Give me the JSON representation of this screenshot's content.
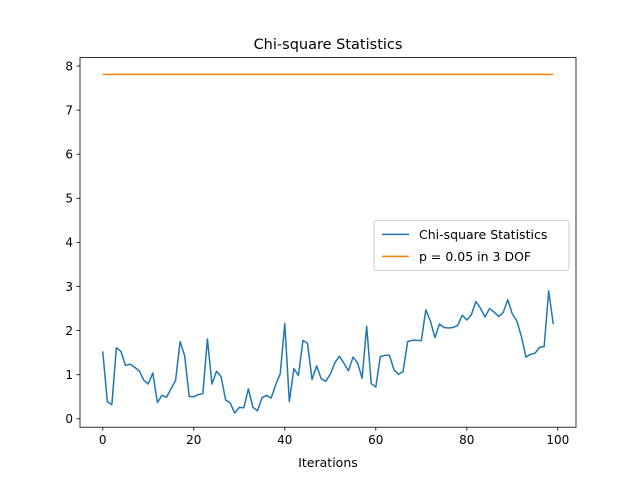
{
  "chart_data": {
    "type": "line",
    "title": "Chi-square Statistics",
    "xlabel": "Iterations",
    "ylabel": "",
    "xlim": [
      -5,
      104
    ],
    "ylim": [
      -0.19,
      8.19
    ],
    "x_ticks": [
      0,
      20,
      40,
      60,
      80,
      100
    ],
    "y_ticks": [
      0,
      1,
      2,
      3,
      4,
      5,
      6,
      7,
      8
    ],
    "grid": false,
    "legend_position": "center-right",
    "series": [
      {
        "name": "Chi-square Statistics",
        "color": "#1f77b4",
        "x": [
          0,
          1,
          2,
          3,
          4,
          5,
          6,
          7,
          8,
          9,
          10,
          11,
          12,
          13,
          14,
          15,
          16,
          17,
          18,
          19,
          20,
          21,
          22,
          23,
          24,
          25,
          26,
          27,
          28,
          29,
          30,
          31,
          32,
          33,
          34,
          35,
          36,
          37,
          38,
          39,
          40,
          41,
          42,
          43,
          44,
          45,
          46,
          47,
          48,
          49,
          50,
          51,
          52,
          53,
          54,
          55,
          56,
          57,
          58,
          59,
          60,
          61,
          62,
          63,
          64,
          65,
          66,
          67,
          68,
          69,
          70,
          71,
          72,
          73,
          74,
          75,
          76,
          77,
          78,
          79,
          80,
          81,
          82,
          83,
          84,
          85,
          86,
          87,
          88,
          89,
          90,
          91,
          92,
          93,
          94,
          95,
          96,
          97,
          98,
          99
        ],
        "values": [
          1.53,
          0.39,
          0.32,
          1.61,
          1.53,
          1.21,
          1.24,
          1.17,
          1.09,
          0.88,
          0.79,
          1.04,
          0.37,
          0.53,
          0.49,
          0.68,
          0.87,
          1.75,
          1.43,
          0.51,
          0.5,
          0.55,
          0.57,
          1.81,
          0.79,
          1.08,
          0.96,
          0.43,
          0.36,
          0.13,
          0.26,
          0.25,
          0.68,
          0.26,
          0.18,
          0.48,
          0.53,
          0.47,
          0.77,
          1.02,
          2.16,
          0.39,
          1.14,
          0.98,
          1.78,
          1.71,
          0.89,
          1.2,
          0.91,
          0.85,
          1.01,
          1.27,
          1.42,
          1.26,
          1.09,
          1.4,
          1.27,
          0.92,
          2.1,
          0.8,
          0.72,
          1.41,
          1.44,
          1.44,
          1.11,
          1.01,
          1.07,
          1.75,
          1.78,
          1.78,
          1.77,
          2.47,
          2.22,
          1.84,
          2.15,
          2.07,
          2.06,
          2.07,
          2.12,
          2.35,
          2.24,
          2.36,
          2.66,
          2.51,
          2.31,
          2.5,
          2.42,
          2.32,
          2.41,
          2.7,
          2.38,
          2.22,
          1.87,
          1.4,
          1.46,
          1.49,
          1.62,
          1.64,
          2.9,
          2.15
        ]
      },
      {
        "name": "p = 0.05 in 3 DOF",
        "color": "#ff7f0e",
        "x": [
          0,
          99
        ],
        "values": [
          7.81,
          7.81
        ]
      }
    ]
  }
}
